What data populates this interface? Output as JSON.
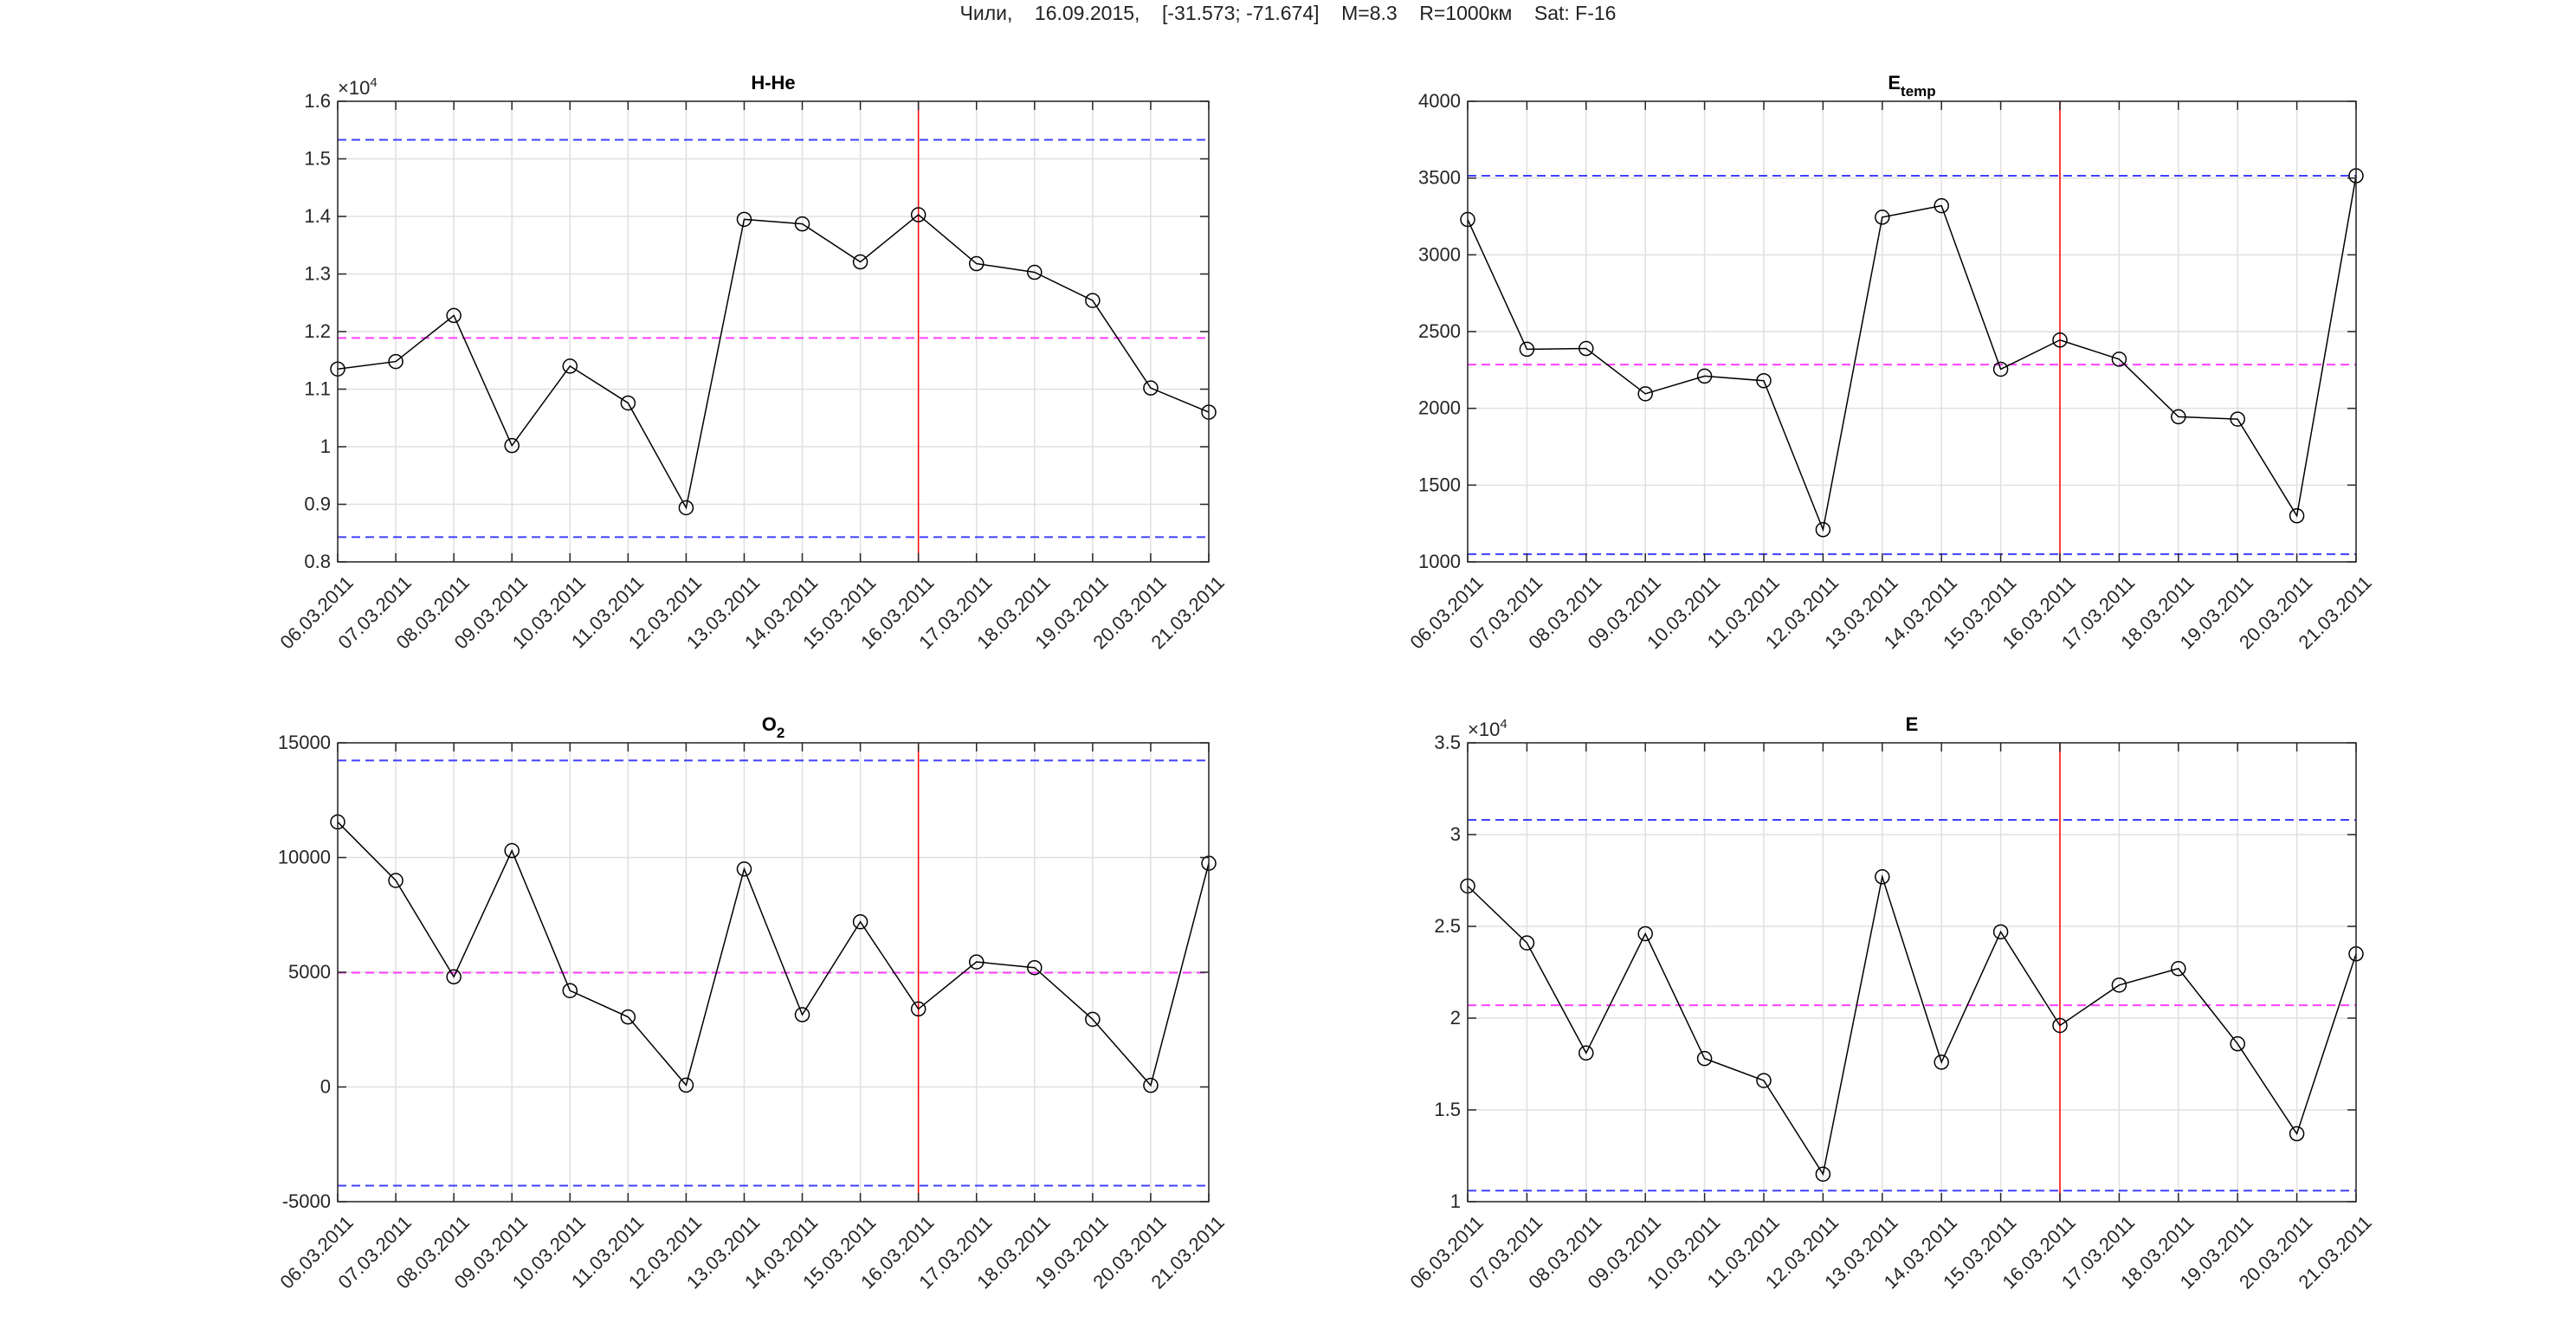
{
  "figure_title": "Чили,    16.09.2015,    [-31.573; -71.674]    M=8.3    R=1000км    Sat: F-16",
  "colors": {
    "line": "#000000",
    "upper_lower_bounds": "#0000ff",
    "mean": "#ff00ff",
    "event_marker": "#ff0000",
    "grid": "#e0e0e0"
  },
  "chart_data": [
    {
      "type": "line",
      "title": "H-He",
      "title_sub": "",
      "exponent_label": "×10",
      "exponent": "4",
      "categories": [
        "06.03.2011",
        "07.03.2011",
        "08.03.2011",
        "09.03.2011",
        "10.03.2011",
        "11.03.2011",
        "12.03.2011",
        "13.03.2011",
        "14.03.2011",
        "15.03.2011",
        "16.03.2011",
        "17.03.2011",
        "18.03.2011",
        "19.03.2011",
        "20.03.2011",
        "21.03.2011"
      ],
      "values": [
        11350,
        11480,
        12280,
        10020,
        11400,
        10760,
        8940,
        13950,
        13870,
        13210,
        14030,
        13180,
        13030,
        12540,
        11020,
        10600
      ],
      "ylim": [
        8000,
        16000
      ],
      "yticks": [
        8000,
        9000,
        10000,
        11000,
        12000,
        13000,
        14000,
        15000,
        16000
      ],
      "ytick_labels": [
        "0.8",
        "0.9",
        "1",
        "1.1",
        "1.2",
        "1.3",
        "1.4",
        "1.5",
        "1.6"
      ],
      "upper_bound": 15330,
      "mean": 11890,
      "lower_bound": 8430,
      "event_date": "16.03.2011",
      "marker": "circle",
      "grid": true
    },
    {
      "type": "line",
      "title": "E",
      "title_sub": "temp",
      "categories": [
        "06.03.2011",
        "07.03.2011",
        "08.03.2011",
        "09.03.2011",
        "10.03.2011",
        "11.03.2011",
        "12.03.2011",
        "13.03.2011",
        "14.03.2011",
        "15.03.2011",
        "16.03.2011",
        "17.03.2011",
        "18.03.2011",
        "19.03.2011",
        "20.03.2011",
        "21.03.2011"
      ],
      "values": [
        3230,
        2385,
        2390,
        2095,
        2210,
        2180,
        1210,
        3245,
        3320,
        2255,
        2445,
        2320,
        1945,
        1930,
        1300,
        3515
      ],
      "ylim": [
        1000,
        4000
      ],
      "yticks": [
        1000,
        1500,
        2000,
        2500,
        3000,
        3500,
        4000
      ],
      "ytick_labels": [
        "1000",
        "1500",
        "2000",
        "2500",
        "3000",
        "3500",
        "4000"
      ],
      "upper_bound": 3515,
      "mean": 2285,
      "lower_bound": 1050,
      "event_date": "16.03.2011",
      "marker": "circle",
      "grid": true
    },
    {
      "type": "line",
      "title": "O",
      "title_sub": "2",
      "categories": [
        "06.03.2011",
        "07.03.2011",
        "08.03.2011",
        "09.03.2011",
        "10.03.2011",
        "11.03.2011",
        "12.03.2011",
        "13.03.2011",
        "14.03.2011",
        "15.03.2011",
        "16.03.2011",
        "17.03.2011",
        "18.03.2011",
        "19.03.2011",
        "20.03.2011",
        "21.03.2011"
      ],
      "values": [
        11550,
        9000,
        4800,
        10300,
        4200,
        3050,
        80,
        9500,
        3150,
        7200,
        3400,
        5450,
        5200,
        2950,
        70,
        9750
      ],
      "ylim": [
        -5000,
        15000
      ],
      "yticks": [
        -5000,
        0,
        5000,
        10000,
        15000
      ],
      "ytick_labels": [
        "-5000",
        "0",
        "5000",
        "10000",
        "15000"
      ],
      "upper_bound": 14230,
      "mean": 4980,
      "lower_bound": -4300,
      "event_date": "16.03.2011",
      "marker": "circle",
      "grid": true
    },
    {
      "type": "line",
      "title": "E",
      "title_sub": "",
      "exponent_label": "×10",
      "exponent": "4",
      "categories": [
        "06.03.2011",
        "07.03.2011",
        "08.03.2011",
        "09.03.2011",
        "10.03.2011",
        "11.03.2011",
        "12.03.2011",
        "13.03.2011",
        "14.03.2011",
        "15.03.2011",
        "16.03.2011",
        "17.03.2011",
        "18.03.2011",
        "19.03.2011",
        "20.03.2011",
        "21.03.2011"
      ],
      "values": [
        27200,
        24100,
        18100,
        24600,
        17800,
        16600,
        11500,
        27700,
        17600,
        24700,
        19600,
        21800,
        22700,
        18600,
        13700,
        23500
      ],
      "ylim": [
        10000,
        35000
      ],
      "yticks": [
        10000,
        15000,
        20000,
        25000,
        30000,
        35000
      ],
      "ytick_labels": [
        "1",
        "1.5",
        "2",
        "2.5",
        "3",
        "3.5"
      ],
      "upper_bound": 30800,
      "mean": 20700,
      "lower_bound": 10600,
      "event_date": "16.03.2011",
      "marker": "circle",
      "grid": true
    }
  ]
}
